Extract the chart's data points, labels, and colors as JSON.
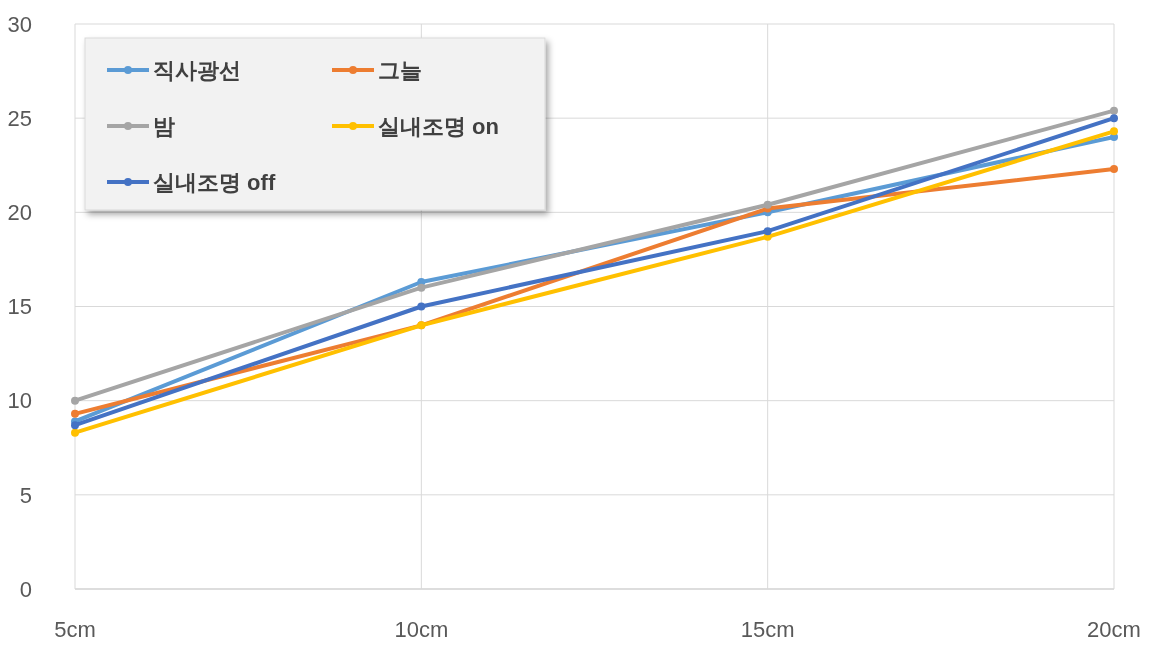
{
  "chart_data": {
    "type": "line",
    "categories": [
      "5cm",
      "10cm",
      "15cm",
      "20cm"
    ],
    "series": [
      {
        "name": "직사광선",
        "color": "#5b9bd5",
        "values": [
          8.9,
          16.3,
          20.0,
          24.0
        ]
      },
      {
        "name": "그늘",
        "color": "#ed7d31",
        "values": [
          9.3,
          14.0,
          20.2,
          22.3
        ]
      },
      {
        "name": "밤",
        "color": "#a5a5a5",
        "values": [
          10.0,
          16.0,
          20.4,
          25.4
        ]
      },
      {
        "name": "실내조명 on",
        "color": "#ffc000",
        "values": [
          8.3,
          14.0,
          18.7,
          24.3
        ]
      },
      {
        "name": "실내조명 off",
        "color": "#4472c4",
        "values": [
          8.7,
          15.0,
          19.0,
          25.0
        ]
      }
    ],
    "ylim": [
      0,
      30
    ],
    "yticks": [
      0,
      5,
      10,
      15,
      20,
      25,
      30
    ],
    "grid": true,
    "legend": "top left",
    "marker": "circle"
  }
}
